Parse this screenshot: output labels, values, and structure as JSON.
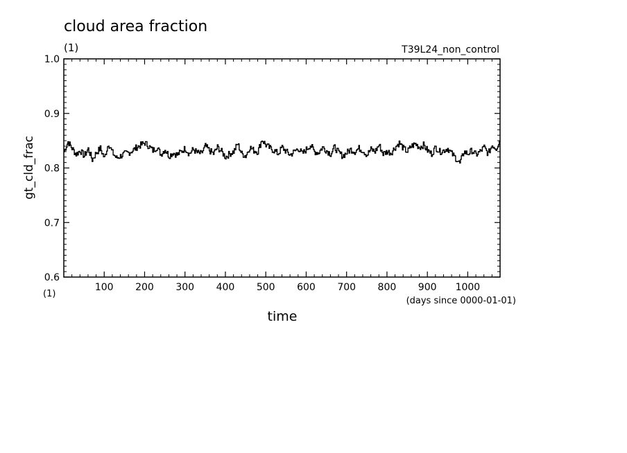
{
  "chart_data": {
    "type": "line",
    "title": "cloud area fraction",
    "title_units": "(1)",
    "experiment": "T39L24_non_control",
    "ylabel": "gt_cld_frac",
    "y_units": "(1)",
    "xlabel": "time",
    "x_units": "(days since 0000-01-01)",
    "xlim": [
      0,
      1080
    ],
    "ylim": [
      0.6,
      1.0
    ],
    "x_ticks": [
      100,
      200,
      300,
      400,
      500,
      600,
      700,
      800,
      900,
      1000
    ],
    "x_tick_labels": [
      "100",
      "200",
      "300",
      "400",
      "500",
      "600",
      "700",
      "800",
      "900",
      "1000"
    ],
    "y_ticks": [
      0.6,
      0.7,
      0.8,
      0.9,
      1.0
    ],
    "y_tick_labels": [
      "0.6",
      "0.7",
      "0.8",
      "0.9",
      "1.0"
    ],
    "grid": false,
    "line_color": "#000000",
    "series": [
      {
        "x": [
          0,
          10,
          20,
          30,
          40,
          50,
          60,
          70,
          80,
          90,
          100,
          110,
          120,
          130,
          140,
          150,
          160,
          170,
          180,
          190,
          200,
          210,
          220,
          230,
          240,
          250,
          260,
          270,
          280,
          290,
          300,
          310,
          320,
          330,
          340,
          350,
          360,
          370,
          380,
          390,
          400,
          410,
          420,
          430,
          440,
          450,
          460,
          470,
          480,
          490,
          500,
          510,
          520,
          530,
          540,
          550,
          560,
          570,
          580,
          590,
          600,
          610,
          620,
          630,
          640,
          650,
          660,
          670,
          680,
          690,
          700,
          710,
          720,
          730,
          740,
          750,
          760,
          770,
          780,
          790,
          800,
          810,
          820,
          830,
          840,
          850,
          860,
          870,
          880,
          890,
          900,
          910,
          920,
          930,
          940,
          950,
          960,
          970,
          980,
          990,
          1000,
          1010,
          1020,
          1030,
          1040,
          1050,
          1060,
          1070,
          1080
        ],
        "values": [
          0.83,
          0.848,
          0.836,
          0.825,
          0.832,
          0.822,
          0.835,
          0.815,
          0.828,
          0.836,
          0.818,
          0.845,
          0.828,
          0.818,
          0.822,
          0.826,
          0.828,
          0.832,
          0.838,
          0.842,
          0.846,
          0.84,
          0.832,
          0.838,
          0.825,
          0.834,
          0.822,
          0.828,
          0.824,
          0.83,
          0.836,
          0.826,
          0.834,
          0.828,
          0.826,
          0.84,
          0.832,
          0.826,
          0.838,
          0.83,
          0.82,
          0.826,
          0.83,
          0.844,
          0.826,
          0.822,
          0.838,
          0.832,
          0.83,
          0.852,
          0.842,
          0.836,
          0.832,
          0.826,
          0.838,
          0.83,
          0.824,
          0.83,
          0.836,
          0.826,
          0.834,
          0.842,
          0.83,
          0.828,
          0.838,
          0.832,
          0.826,
          0.838,
          0.828,
          0.822,
          0.828,
          0.834,
          0.83,
          0.836,
          0.832,
          0.824,
          0.834,
          0.83,
          0.842,
          0.826,
          0.83,
          0.828,
          0.838,
          0.846,
          0.836,
          0.83,
          0.84,
          0.844,
          0.838,
          0.842,
          0.832,
          0.826,
          0.838,
          0.83,
          0.832,
          0.836,
          0.826,
          0.818,
          0.808,
          0.83,
          0.826,
          0.832,
          0.824,
          0.83,
          0.838,
          0.826,
          0.842,
          0.836,
          0.852
        ]
      }
    ]
  }
}
